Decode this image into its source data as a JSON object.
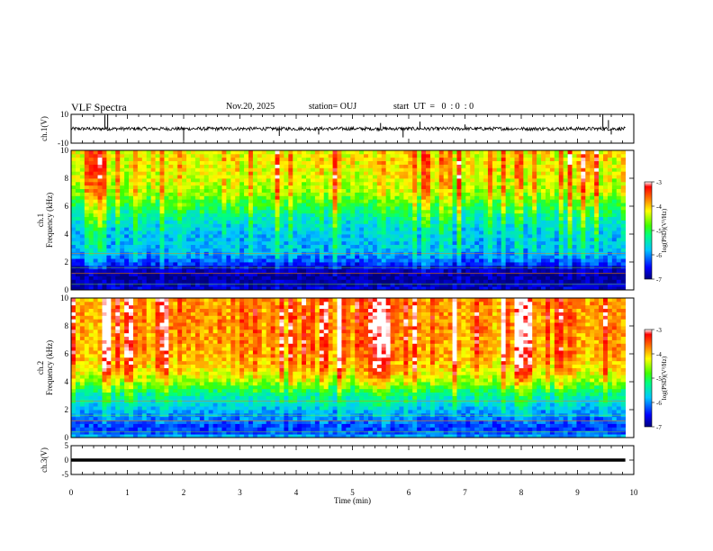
{
  "header": {
    "title": "VLF Spectra",
    "date": "Nov.20, 2025",
    "station": "station= OUJ",
    "start": "start  UT  =   0  : 0  : 0"
  },
  "chart_data": [
    {
      "type": "line",
      "panel": "ch1-waveform",
      "ylabel": "ch.1(V)",
      "ylim": [
        -10,
        10
      ],
      "yticks": [
        "10",
        "-10"
      ],
      "xlim": [
        0,
        10
      ],
      "data_end_min": 9.85,
      "baseline": 0,
      "noise_amplitude": 1.2,
      "spikes": [
        {
          "t": 0.6,
          "v": 9
        },
        {
          "t": 0.65,
          "v": 10
        },
        {
          "t": 2.0,
          "v": -8
        },
        {
          "t": 3.7,
          "v": -5
        },
        {
          "t": 4.4,
          "v": -4
        },
        {
          "t": 5.5,
          "v": 4
        },
        {
          "t": 5.9,
          "v": -6
        },
        {
          "t": 6.2,
          "v": 5
        },
        {
          "t": 7.0,
          "v": 3
        },
        {
          "t": 9.45,
          "v": 10
        },
        {
          "t": 9.55,
          "v": 6
        },
        {
          "t": 9.6,
          "v": -4
        }
      ]
    },
    {
      "type": "heatmap",
      "panel": "ch1-spectrogram",
      "ylabel": "ch.1\nFrequency (kHz)",
      "ylim": [
        0,
        10
      ],
      "yticks": [
        "0",
        "2",
        "4",
        "6",
        "8",
        "10"
      ],
      "xlim": [
        0,
        10
      ],
      "data_end_min": 9.85,
      "colorbar": {
        "label": "log(PSD)(V²/Hz)",
        "range": [
          -7,
          -3
        ],
        "ticks": [
          "-3",
          "-4",
          "-5",
          "-6",
          "-7"
        ]
      },
      "profile": [
        {
          "f": 0.0,
          "v": -6.6
        },
        {
          "f": 0.5,
          "v": -6.8
        },
        {
          "f": 1.0,
          "v": -6.9
        },
        {
          "f": 1.5,
          "v": -6.7
        },
        {
          "f": 2.0,
          "v": -6.2
        },
        {
          "f": 2.5,
          "v": -5.9
        },
        {
          "f": 3.0,
          "v": -5.7
        },
        {
          "f": 4.0,
          "v": -5.6
        },
        {
          "f": 5.0,
          "v": -5.3
        },
        {
          "f": 6.0,
          "v": -4.8
        },
        {
          "f": 7.0,
          "v": -4.3
        },
        {
          "f": 8.0,
          "v": -4.1
        },
        {
          "f": 9.0,
          "v": -4.0
        },
        {
          "f": 10.0,
          "v": -4.0
        }
      ]
    },
    {
      "type": "heatmap",
      "panel": "ch2-spectrogram",
      "ylabel": "ch.2\nFrequency (kHz)",
      "ylim": [
        0,
        10
      ],
      "yticks": [
        "0",
        "2",
        "4",
        "6",
        "8",
        "10"
      ],
      "xlim": [
        0,
        10
      ],
      "data_end_min": 9.85,
      "colorbar": {
        "label": "log(PSD)(V²/Hz)",
        "range": [
          -7,
          -3
        ],
        "ticks": [
          "-3",
          "-4",
          "-5",
          "-6",
          "-7"
        ]
      },
      "profile": [
        {
          "f": 0.0,
          "v": -5.8
        },
        {
          "f": 0.5,
          "v": -6.3
        },
        {
          "f": 1.0,
          "v": -6.2
        },
        {
          "f": 1.5,
          "v": -6.0
        },
        {
          "f": 2.0,
          "v": -5.8
        },
        {
          "f": 2.5,
          "v": -5.5
        },
        {
          "f": 3.0,
          "v": -5.3
        },
        {
          "f": 3.5,
          "v": -4.9
        },
        {
          "f": 4.0,
          "v": -4.4
        },
        {
          "f": 5.0,
          "v": -3.9
        },
        {
          "f": 6.0,
          "v": -3.7
        },
        {
          "f": 8.0,
          "v": -3.6
        },
        {
          "f": 10.0,
          "v": -3.6
        }
      ]
    },
    {
      "type": "line",
      "panel": "ch3-waveform",
      "ylabel": "ch.3(V)",
      "ylim": [
        -5,
        5
      ],
      "yticks": [
        "5",
        "0",
        "-5"
      ],
      "xlim": [
        0,
        10
      ],
      "data_end_min": 9.85,
      "level": 0
    }
  ],
  "xaxis": {
    "label": "Time (min)",
    "ticks": [
      "0",
      "1",
      "2",
      "3",
      "4",
      "5",
      "6",
      "7",
      "8",
      "9",
      "10"
    ]
  }
}
